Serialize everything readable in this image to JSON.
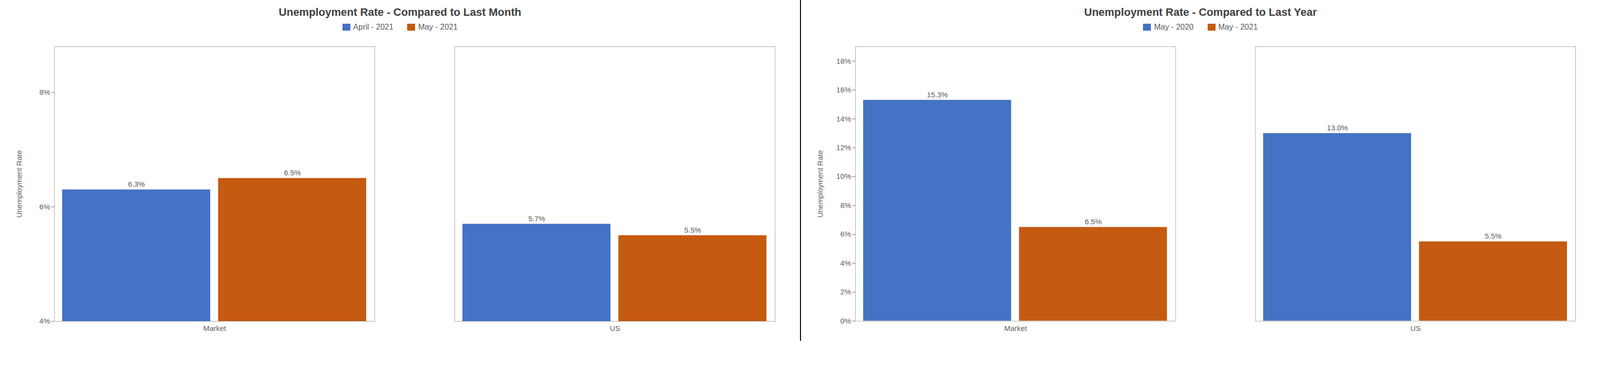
{
  "chart_data": [
    {
      "type": "bar",
      "title": "Unemployment Rate - Compared to Last Month",
      "ylabel": "Unemployment Rate",
      "categories": [
        "Market",
        "US"
      ],
      "series": [
        {
          "name": "April - 2021",
          "color": "#4472C4",
          "values": [
            6.3,
            5.7
          ],
          "value_labels": [
            "6.3%",
            "5.7%"
          ]
        },
        {
          "name": "May - 2021",
          "color": "#C55A11",
          "values": [
            6.5,
            5.5
          ],
          "value_labels": [
            "6.5%",
            "5.5%"
          ]
        }
      ],
      "ylim": [
        4.0,
        8.8
      ],
      "yticks": [
        {
          "value": 4,
          "label": "4%"
        },
        {
          "value": 6,
          "label": "6%"
        },
        {
          "value": 8,
          "label": "8%"
        }
      ],
      "data_labels": true,
      "legend": "top",
      "grid": false
    },
    {
      "type": "bar",
      "title": "Unemployment Rate - Compared to Last Year",
      "ylabel": "Unemployment Rate",
      "categories": [
        "Market",
        "US"
      ],
      "series": [
        {
          "name": "May - 2020",
          "color": "#4472C4",
          "values": [
            15.3,
            13.0
          ],
          "value_labels": [
            "15.3%",
            "13.0%"
          ]
        },
        {
          "name": "May - 2021",
          "color": "#C55A11",
          "values": [
            6.5,
            5.5
          ],
          "value_labels": [
            "6.5%",
            "5.5%"
          ]
        }
      ],
      "ylim": [
        0.0,
        19.0
      ],
      "yticks": [
        {
          "value": 0,
          "label": "0%"
        },
        {
          "value": 2,
          "label": "2%"
        },
        {
          "value": 4,
          "label": "4%"
        },
        {
          "value": 6,
          "label": "6%"
        },
        {
          "value": 8,
          "label": "8%"
        },
        {
          "value": 10,
          "label": "10%"
        },
        {
          "value": 12,
          "label": "12%"
        },
        {
          "value": 14,
          "label": "14%"
        },
        {
          "value": 16,
          "label": "16%"
        },
        {
          "value": 18,
          "label": "18%"
        }
      ],
      "data_labels": true,
      "legend": "top",
      "grid": false
    }
  ]
}
